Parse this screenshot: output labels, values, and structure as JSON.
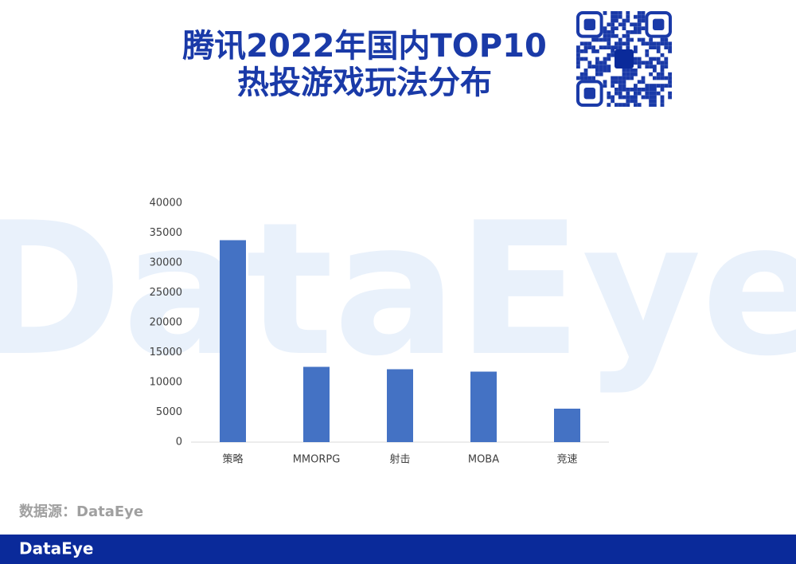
{
  "chart_data": {
    "type": "bar",
    "title": [
      "腾讯2022年国内TOP10",
      "热投游戏玩法分布"
    ],
    "categories": [
      "策略",
      "MMORPG",
      "射击",
      "MOBA",
      "竞速"
    ],
    "values": [
      33800,
      12600,
      12200,
      11800,
      5600
    ],
    "color": "#4472c4",
    "ylim": [
      0,
      40000
    ],
    "yticks": [
      0,
      5000,
      10000,
      15000,
      20000,
      25000,
      30000,
      35000,
      40000
    ],
    "grid": false,
    "watermark": "DataEye",
    "source": "数据源：DataEye",
    "footer": "DataEye"
  }
}
